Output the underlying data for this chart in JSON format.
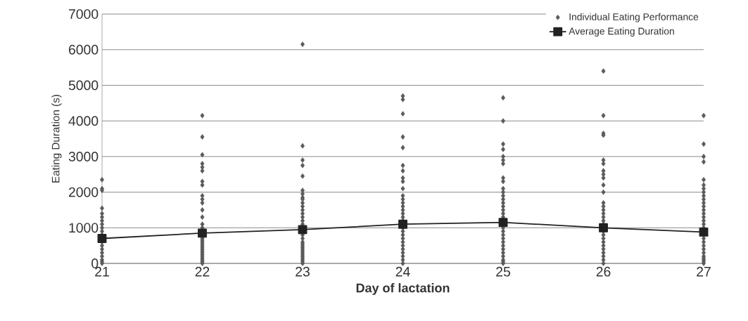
{
  "chart_data": {
    "type": "scatter",
    "xlabel": "Day of lactation",
    "ylabel": "Eating Duration (s)",
    "xlim": [
      21,
      27
    ],
    "xticks": [
      21,
      22,
      23,
      24,
      25,
      26,
      27
    ],
    "ylim": [
      0,
      7000
    ],
    "yticks": [
      0,
      1000,
      2000,
      3000,
      4000,
      5000,
      6000,
      7000
    ],
    "grid": "y",
    "legend": "top right",
    "series": [
      {
        "name": "Individual Eating Performance",
        "type": "scatter",
        "marker": "diamond",
        "color": "#5a5a5a",
        "x": [
          21,
          21,
          21,
          21,
          21,
          21,
          21,
          21,
          21,
          21,
          21,
          21,
          21,
          21,
          21,
          21,
          21,
          21,
          21,
          22,
          22,
          22,
          22,
          22,
          22,
          22,
          22,
          22,
          22,
          22,
          22,
          22,
          22,
          22,
          22,
          22,
          22,
          22,
          22,
          22,
          22,
          22,
          22,
          22,
          22,
          22,
          22,
          22,
          22,
          22,
          23,
          23,
          23,
          23,
          23,
          23,
          23,
          23,
          23,
          23,
          23,
          23,
          23,
          23,
          23,
          23,
          23,
          23,
          23,
          23,
          23,
          23,
          23,
          23,
          23,
          23,
          23,
          23,
          23,
          23,
          23,
          24,
          24,
          24,
          24,
          24,
          24,
          24,
          24,
          24,
          24,
          24,
          24,
          24,
          24,
          24,
          24,
          24,
          24,
          24,
          24,
          24,
          24,
          24,
          24,
          24,
          24,
          24,
          24,
          24,
          25,
          25,
          25,
          25,
          25,
          25,
          25,
          25,
          25,
          25,
          25,
          25,
          25,
          25,
          25,
          25,
          25,
          25,
          25,
          25,
          25,
          25,
          25,
          25,
          25,
          25,
          25,
          25,
          25,
          25,
          26,
          26,
          26,
          26,
          26,
          26,
          26,
          26,
          26,
          26,
          26,
          26,
          26,
          26,
          26,
          26,
          26,
          26,
          26,
          26,
          26,
          26,
          26,
          26,
          26,
          26,
          26,
          26,
          27,
          27,
          27,
          27,
          27,
          27,
          27,
          27,
          27,
          27,
          27,
          27,
          27,
          27,
          27,
          27,
          27,
          27,
          27,
          27,
          27,
          27,
          27,
          27,
          27,
          27,
          27,
          27,
          27
        ],
        "values": [
          2350,
          2100,
          2050,
          1550,
          1400,
          1300,
          1200,
          1100,
          1000,
          900,
          800,
          600,
          500,
          400,
          300,
          200,
          100,
          50,
          0,
          4150,
          3550,
          3050,
          2800,
          2700,
          2600,
          2300,
          2200,
          1900,
          1800,
          1700,
          1500,
          1300,
          1100,
          1000,
          750,
          700,
          650,
          600,
          550,
          500,
          450,
          400,
          350,
          300,
          250,
          200,
          150,
          100,
          50,
          0,
          6150,
          3300,
          2900,
          2750,
          2450,
          2050,
          1950,
          1850,
          1800,
          1700,
          1600,
          1500,
          1400,
          1300,
          1200,
          1100,
          800,
          700,
          600,
          550,
          500,
          450,
          400,
          350,
          300,
          250,
          200,
          150,
          100,
          50,
          0,
          4700,
          4600,
          4200,
          3550,
          3250,
          2750,
          2600,
          2400,
          2300,
          2100,
          1900,
          1800,
          1700,
          1600,
          1500,
          1400,
          1300,
          1200,
          1000,
          900,
          800,
          700,
          600,
          500,
          400,
          300,
          200,
          100,
          0,
          4650,
          4000,
          3350,
          3200,
          3000,
          2900,
          2800,
          2400,
          2300,
          2100,
          2000,
          1900,
          1800,
          1700,
          1600,
          1500,
          1400,
          1300,
          1000,
          900,
          800,
          700,
          600,
          500,
          400,
          300,
          200,
          100,
          50,
          0,
          5400,
          4150,
          3650,
          3600,
          2900,
          2800,
          2600,
          2500,
          2400,
          2200,
          2000,
          1700,
          1600,
          1500,
          1400,
          1300,
          1200,
          1100,
          900,
          800,
          700,
          600,
          500,
          400,
          300,
          200,
          100,
          0,
          4150,
          3350,
          3000,
          2850,
          2350,
          2200,
          2100,
          2000,
          1900,
          1800,
          1700,
          1600,
          1500,
          1400,
          1300,
          1200,
          1100,
          1000,
          800,
          700,
          600,
          500,
          400,
          300,
          200,
          150,
          100,
          50,
          0
        ]
      },
      {
        "name": "Average Eating Duration",
        "type": "line",
        "marker": "square",
        "line_style": "solid",
        "color": "#222222",
        "x": [
          21,
          22,
          23,
          24,
          25,
          26,
          27
        ],
        "values": [
          700,
          850,
          950,
          1100,
          1150,
          1000,
          880
        ]
      }
    ]
  }
}
